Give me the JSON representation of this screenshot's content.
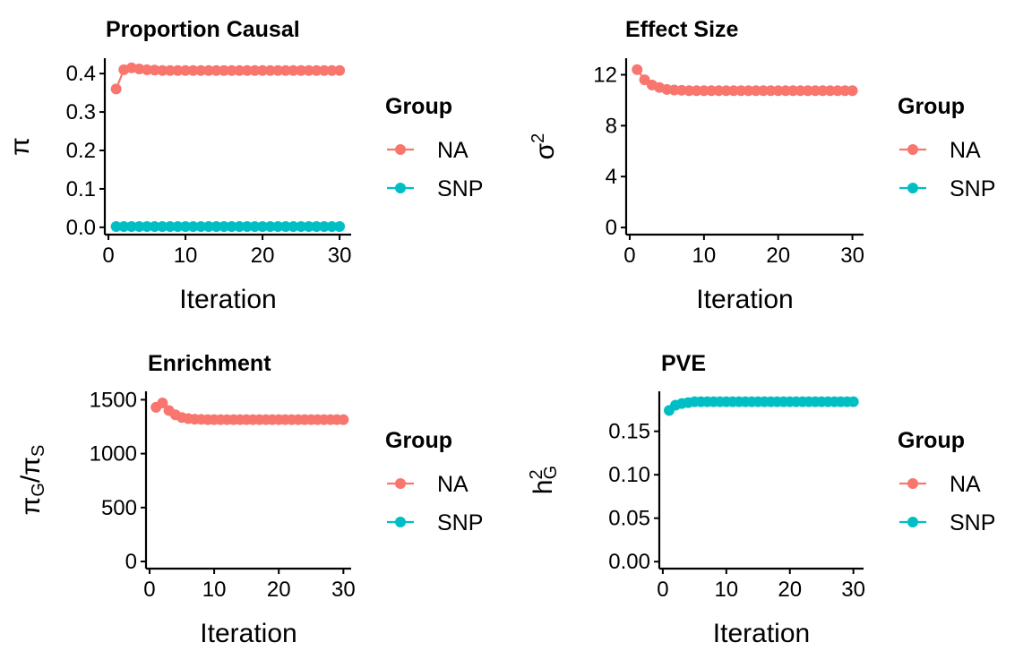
{
  "chart_data": [
    {
      "type": "line",
      "title": "Proportion Causal",
      "xlabel": "Iteration",
      "ylabel": [
        {
          "text": "π"
        }
      ],
      "legend_title": "Group",
      "x": [
        1,
        2,
        3,
        4,
        5,
        6,
        7,
        8,
        9,
        10,
        11,
        12,
        13,
        14,
        15,
        16,
        17,
        18,
        19,
        20,
        21,
        22,
        23,
        24,
        25,
        26,
        27,
        28,
        29,
        30
      ],
      "series": [
        {
          "name": "NA",
          "color": "#F8766D",
          "values": [
            0.36,
            0.41,
            0.415,
            0.412,
            0.41,
            0.409,
            0.408,
            0.408,
            0.408,
            0.408,
            0.408,
            0.408,
            0.408,
            0.408,
            0.408,
            0.408,
            0.408,
            0.408,
            0.408,
            0.408,
            0.408,
            0.408,
            0.408,
            0.408,
            0.408,
            0.408,
            0.408,
            0.408,
            0.408,
            0.408
          ]
        },
        {
          "name": "SNP",
          "color": "#00BFC4",
          "values": [
            0.002,
            0.002,
            0.002,
            0.002,
            0.002,
            0.002,
            0.002,
            0.002,
            0.002,
            0.002,
            0.002,
            0.002,
            0.002,
            0.002,
            0.002,
            0.002,
            0.002,
            0.002,
            0.002,
            0.002,
            0.002,
            0.002,
            0.002,
            0.002,
            0.002,
            0.002,
            0.002,
            0.002,
            0.002,
            0.002
          ]
        }
      ],
      "xlim": [
        -0.47,
        31.5
      ],
      "ylim": [
        -0.019,
        0.44
      ],
      "xticks": [
        0,
        10,
        20,
        30
      ],
      "yticks": [
        {
          "value": 0,
          "label": "0.0"
        },
        0.1,
        0.2,
        0.3,
        0.4
      ]
    },
    {
      "type": "line",
      "title": "Effect Size",
      "xlabel": "Iteration",
      "ylabel": [
        {
          "text": "σ"
        },
        {
          "text": "2",
          "shift": "super"
        }
      ],
      "legend_title": "Group",
      "x": [
        1,
        2,
        3,
        4,
        5,
        6,
        7,
        8,
        9,
        10,
        11,
        12,
        13,
        14,
        15,
        16,
        17,
        18,
        19,
        20,
        21,
        22,
        23,
        24,
        25,
        26,
        27,
        28,
        29,
        30
      ],
      "series": [
        {
          "name": "NA",
          "color": "#F8766D",
          "values": [
            12.4,
            11.6,
            11.2,
            11.0,
            10.85,
            10.8,
            10.78,
            10.75,
            10.75,
            10.75,
            10.75,
            10.75,
            10.75,
            10.75,
            10.75,
            10.75,
            10.75,
            10.75,
            10.75,
            10.75,
            10.75,
            10.75,
            10.75,
            10.75,
            10.75,
            10.75,
            10.75,
            10.75,
            10.75,
            10.75
          ]
        },
        {
          "name": "SNP",
          "color": "#00BFC4",
          "values": [
            null,
            null,
            null,
            null,
            null,
            null,
            null,
            null,
            null,
            null,
            null,
            null,
            null,
            null,
            null,
            null,
            null,
            null,
            null,
            null,
            null,
            null,
            null,
            null,
            null,
            null,
            null,
            null,
            null,
            null
          ]
        }
      ],
      "xlim": [
        -0.48,
        31.5
      ],
      "ylim": [
        -0.56,
        13.3
      ],
      "xticks": [
        0,
        10,
        20,
        30
      ],
      "yticks": [
        0,
        4,
        8,
        12
      ]
    },
    {
      "type": "line",
      "title": "Enrichment",
      "xlabel": "Iteration",
      "ylabel": [
        {
          "text": "π"
        },
        {
          "text": "G",
          "shift": "sub"
        },
        {
          "text": "/"
        },
        {
          "text": "π"
        },
        {
          "text": "S",
          "shift": "sub"
        }
      ],
      "legend_title": "Group",
      "x": [
        1,
        2,
        3,
        4,
        5,
        6,
        7,
        8,
        9,
        10,
        11,
        12,
        13,
        14,
        15,
        16,
        17,
        18,
        19,
        20,
        21,
        22,
        23,
        24,
        25,
        26,
        27,
        28,
        29,
        30
      ],
      "series": [
        {
          "name": "NA",
          "color": "#F8766D",
          "values": [
            1430,
            1470,
            1400,
            1360,
            1335,
            1325,
            1320,
            1318,
            1315,
            1315,
            1315,
            1315,
            1315,
            1315,
            1315,
            1315,
            1315,
            1315,
            1315,
            1315,
            1315,
            1315,
            1315,
            1315,
            1315,
            1315,
            1315,
            1315,
            1315,
            1315
          ]
        },
        {
          "name": "SNP",
          "color": "#00BFC4",
          "values": [
            null,
            null,
            null,
            null,
            null,
            null,
            null,
            null,
            null,
            null,
            null,
            null,
            null,
            null,
            null,
            null,
            null,
            null,
            null,
            null,
            null,
            null,
            null,
            null,
            null,
            null,
            null,
            null,
            null,
            null
          ]
        }
      ],
      "xlim": [
        -0.55,
        31.2
      ],
      "ylim": [
        -66,
        1578
      ],
      "xticks": [
        0,
        10,
        20,
        30
      ],
      "yticks": [
        0,
        500,
        1000,
        1500
      ]
    },
    {
      "type": "line",
      "title": "PVE",
      "xlabel": "Iteration",
      "ylabel": [
        {
          "text": "h"
        },
        {
          "text": "2",
          "shift": "super"
        },
        {
          "text": "G",
          "shift": "sub"
        }
      ],
      "legend_title": "Group",
      "x": [
        1,
        2,
        3,
        4,
        5,
        6,
        7,
        8,
        9,
        10,
        11,
        12,
        13,
        14,
        15,
        16,
        17,
        18,
        19,
        20,
        21,
        22,
        23,
        24,
        25,
        26,
        27,
        28,
        29,
        30
      ],
      "series": [
        {
          "name": "NA",
          "color": "#F8766D",
          "values": [
            null,
            null,
            null,
            null,
            null,
            null,
            null,
            null,
            null,
            null,
            null,
            null,
            null,
            null,
            null,
            null,
            null,
            null,
            null,
            null,
            null,
            null,
            null,
            null,
            null,
            null,
            null,
            null,
            null,
            null
          ]
        },
        {
          "name": "SNP",
          "color": "#00BFC4",
          "values": [
            0.174,
            0.18,
            0.182,
            0.183,
            0.184,
            0.184,
            0.184,
            0.184,
            0.184,
            0.184,
            0.184,
            0.184,
            0.184,
            0.184,
            0.184,
            0.184,
            0.184,
            0.184,
            0.184,
            0.184,
            0.184,
            0.184,
            0.184,
            0.184,
            0.184,
            0.184,
            0.184,
            0.184,
            0.184,
            0.184
          ]
        }
      ],
      "xlim": [
        -0.55,
        31.6
      ],
      "ylim": [
        -0.008,
        0.196
      ],
      "xticks": [
        0,
        10,
        20,
        30
      ],
      "yticks": [
        {
          "value": 0,
          "label": "0.00"
        },
        0.05,
        {
          "value": 0.1,
          "label": "0.10"
        },
        0.15
      ]
    }
  ]
}
